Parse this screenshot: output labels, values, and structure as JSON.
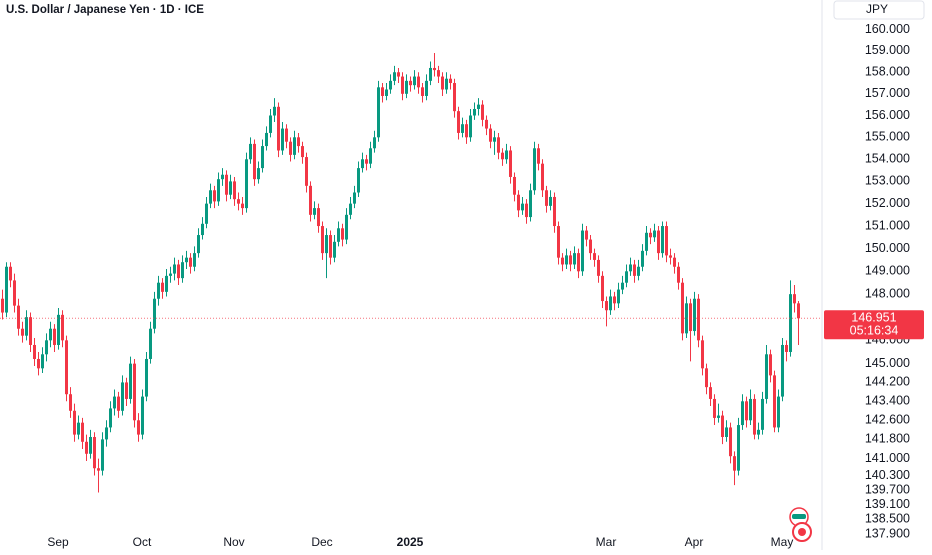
{
  "chart_data": {
    "type": "candlestick",
    "title": "U.S. Dollar / Japanese Yen · 1D · ICE",
    "currency": "JPY",
    "countdown": "05:16:34",
    "up_color": "#089981",
    "down_color": "#f23645",
    "log_scale": true,
    "grid": false,
    "ylim": [
      137.8,
      161.4
    ],
    "yticks": [
      {
        "value": 160,
        "label": "160.000"
      },
      {
        "value": 159,
        "label": "159.000"
      },
      {
        "value": 158,
        "label": "158.000"
      },
      {
        "value": 157,
        "label": "157.000"
      },
      {
        "value": 156,
        "label": "156.000"
      },
      {
        "value": 155,
        "label": "155.000"
      },
      {
        "value": 154,
        "label": "154.000"
      },
      {
        "value": 153,
        "label": "153.000"
      },
      {
        "value": 152,
        "label": "152.000"
      },
      {
        "value": 151,
        "label": "151.000"
      },
      {
        "value": 150,
        "label": "150.000"
      },
      {
        "value": 149,
        "label": "149.000"
      },
      {
        "value": 148,
        "label": "148.000"
      },
      {
        "value": 146,
        "label": "146.000"
      },
      {
        "value": 145,
        "label": "145.000"
      },
      {
        "value": 144.2,
        "label": "144.200"
      },
      {
        "value": 143.4,
        "label": "143.400"
      },
      {
        "value": 142.6,
        "label": "142.600"
      },
      {
        "value": 141.8,
        "label": "141.800"
      },
      {
        "value": 141,
        "label": "141.000"
      },
      {
        "value": 140.3,
        "label": "140.300"
      },
      {
        "value": 139.7,
        "label": "139.700"
      },
      {
        "value": 139.1,
        "label": "139.100"
      },
      {
        "value": 138.5,
        "label": "138.500"
      },
      {
        "value": 137.9,
        "label": "137.900"
      }
    ],
    "categories": [
      null,
      null,
      null,
      null,
      null,
      null,
      null,
      null,
      null,
      null,
      null,
      null,
      null,
      null,
      "Sep",
      null,
      null,
      null,
      null,
      null,
      null,
      null,
      null,
      null,
      null,
      null,
      null,
      null,
      null,
      null,
      null,
      null,
      null,
      null,
      null,
      "Oct",
      null,
      null,
      null,
      null,
      null,
      null,
      null,
      null,
      null,
      null,
      null,
      null,
      null,
      null,
      null,
      null,
      null,
      null,
      null,
      null,
      null,
      null,
      "Nov",
      null,
      null,
      null,
      null,
      null,
      null,
      null,
      null,
      null,
      null,
      null,
      null,
      null,
      null,
      null,
      null,
      null,
      null,
      null,
      null,
      null,
      "Dec",
      null,
      null,
      null,
      null,
      null,
      null,
      null,
      null,
      null,
      null,
      null,
      null,
      null,
      null,
      null,
      null,
      null,
      null,
      null,
      null,
      null,
      "2025",
      null,
      null,
      null,
      null,
      null,
      null,
      null,
      null,
      null,
      null,
      null,
      null,
      null,
      null,
      null,
      null,
      null,
      null,
      null,
      null,
      null,
      null,
      null,
      null,
      null,
      null,
      null,
      null,
      null,
      null,
      null,
      null,
      null,
      null,
      null,
      null,
      null,
      null,
      null,
      null,
      null,
      null,
      null,
      null,
      null,
      null,
      null,
      null,
      "Mar",
      null,
      null,
      null,
      null,
      null,
      null,
      null,
      null,
      null,
      null,
      null,
      null,
      null,
      null,
      null,
      null,
      null,
      null,
      null,
      null,
      null,
      "Apr",
      null,
      null,
      null,
      null,
      null,
      null,
      null,
      null,
      null,
      null,
      null,
      null,
      null,
      null,
      null,
      null,
      null,
      null,
      null,
      null,
      null,
      "May",
      null,
      null,
      null,
      null,
      null,
      null,
      null,
      null
    ],
    "candles": [
      [
        147.8,
        148.2,
        146.9,
        147.2
      ],
      [
        147.2,
        149.4,
        147.0,
        149.2
      ],
      [
        149.2,
        149.4,
        148.3,
        148.6
      ],
      [
        148.6,
        148.9,
        147.2,
        147.5
      ],
      [
        147.5,
        147.8,
        146.2,
        146.5
      ],
      [
        146.5,
        146.8,
        145.9,
        146.2
      ],
      [
        146.2,
        147.3,
        146.0,
        147.0
      ],
      [
        147.0,
        147.2,
        145.5,
        145.8
      ],
      [
        145.8,
        146.1,
        144.9,
        145.2
      ],
      [
        145.2,
        145.5,
        144.5,
        144.8
      ],
      [
        144.8,
        145.7,
        144.6,
        145.4
      ],
      [
        145.4,
        146.3,
        145.1,
        146.0
      ],
      [
        146.0,
        146.8,
        145.7,
        146.5
      ],
      [
        146.5,
        146.7,
        145.5,
        145.8
      ],
      [
        145.8,
        147.4,
        145.6,
        147.1
      ],
      [
        147.1,
        147.3,
        145.7,
        146.0
      ],
      [
        146.0,
        146.2,
        143.4,
        143.7
      ],
      [
        143.7,
        144.0,
        142.7,
        143.0
      ],
      [
        143.0,
        143.3,
        141.7,
        142.0
      ],
      [
        142.0,
        142.8,
        141.8,
        142.5
      ],
      [
        142.5,
        142.7,
        141.4,
        141.7
      ],
      [
        141.7,
        142.0,
        140.9,
        141.2
      ],
      [
        141.2,
        142.2,
        141.0,
        141.9
      ],
      [
        141.9,
        142.1,
        140.3,
        140.6
      ],
      [
        140.6,
        141.0,
        139.6,
        140.5
      ],
      [
        140.5,
        142.1,
        140.3,
        141.8
      ],
      [
        141.8,
        142.6,
        141.5,
        142.3
      ],
      [
        142.3,
        143.4,
        142.1,
        143.1
      ],
      [
        143.1,
        143.9,
        142.8,
        143.6
      ],
      [
        143.6,
        143.8,
        142.7,
        143.0
      ],
      [
        143.0,
        144.5,
        142.8,
        144.2
      ],
      [
        144.2,
        144.4,
        143.2,
        143.5
      ],
      [
        143.5,
        145.3,
        143.3,
        145.0
      ],
      [
        145.0,
        145.2,
        142.3,
        142.6
      ],
      [
        142.6,
        142.9,
        141.7,
        142.0
      ],
      [
        142.0,
        143.9,
        141.8,
        143.6
      ],
      [
        143.6,
        145.5,
        143.4,
        145.2
      ],
      [
        145.2,
        146.8,
        145.0,
        146.5
      ],
      [
        146.5,
        148.1,
        146.3,
        147.8
      ],
      [
        147.8,
        148.8,
        147.5,
        148.5
      ],
      [
        148.5,
        148.7,
        147.8,
        148.1
      ],
      [
        148.1,
        149.1,
        147.9,
        148.8
      ],
      [
        148.8,
        149.2,
        148.5,
        148.9
      ],
      [
        148.9,
        149.6,
        148.6,
        149.3
      ],
      [
        149.3,
        149.5,
        148.4,
        148.7
      ],
      [
        148.7,
        149.7,
        148.5,
        149.4
      ],
      [
        149.4,
        149.9,
        149.1,
        149.6
      ],
      [
        149.6,
        149.8,
        148.9,
        149.2
      ],
      [
        149.2,
        150.1,
        149.0,
        149.8
      ],
      [
        149.8,
        150.9,
        149.6,
        150.6
      ],
      [
        150.6,
        151.4,
        150.4,
        151.1
      ],
      [
        151.1,
        152.3,
        150.9,
        152.0
      ],
      [
        152.0,
        152.9,
        151.8,
        152.6
      ],
      [
        152.6,
        152.8,
        151.8,
        152.1
      ],
      [
        152.1,
        153.4,
        151.9,
        153.1
      ],
      [
        153.1,
        153.6,
        152.8,
        153.3
      ],
      [
        153.3,
        153.5,
        152.1,
        152.4
      ],
      [
        152.4,
        153.3,
        152.2,
        153.0
      ],
      [
        153.0,
        153.2,
        151.9,
        152.2
      ],
      [
        152.2,
        152.5,
        151.7,
        152.0
      ],
      [
        152.0,
        152.3,
        151.5,
        151.8
      ],
      [
        151.8,
        154.3,
        151.6,
        154.0
      ],
      [
        154.0,
        155.0,
        153.8,
        154.7
      ],
      [
        154.7,
        154.9,
        152.8,
        153.1
      ],
      [
        153.1,
        153.9,
        152.9,
        153.6
      ],
      [
        153.6,
        154.9,
        153.4,
        154.6
      ],
      [
        154.6,
        155.5,
        154.4,
        155.2
      ],
      [
        155.2,
        156.3,
        155.0,
        156.0
      ],
      [
        156.0,
        156.8,
        155.7,
        156.4
      ],
      [
        156.4,
        156.6,
        154.1,
        154.4
      ],
      [
        154.4,
        155.7,
        154.2,
        155.4
      ],
      [
        155.4,
        155.6,
        154.5,
        154.8
      ],
      [
        154.8,
        155.0,
        153.9,
        154.2
      ],
      [
        154.2,
        155.3,
        154.0,
        155.0
      ],
      [
        155.0,
        155.2,
        154.3,
        154.6
      ],
      [
        154.6,
        154.8,
        153.8,
        154.1
      ],
      [
        154.1,
        154.3,
        152.5,
        152.8
      ],
      [
        152.8,
        153.0,
        151.2,
        151.5
      ],
      [
        151.5,
        152.1,
        151.3,
        151.8
      ],
      [
        151.8,
        152.0,
        150.7,
        151.0
      ],
      [
        151.0,
        151.2,
        149.5,
        149.8
      ],
      [
        149.8,
        150.9,
        148.7,
        150.6
      ],
      [
        150.6,
        150.8,
        149.3,
        149.6
      ],
      [
        149.6,
        150.6,
        149.4,
        150.3
      ],
      [
        150.3,
        151.2,
        150.1,
        150.9
      ],
      [
        150.9,
        151.1,
        150.1,
        150.4
      ],
      [
        150.4,
        151.8,
        150.2,
        151.5
      ],
      [
        151.5,
        152.3,
        151.3,
        152.0
      ],
      [
        152.0,
        152.8,
        151.8,
        152.5
      ],
      [
        152.5,
        153.9,
        152.3,
        153.6
      ],
      [
        153.6,
        154.3,
        153.4,
        154.0
      ],
      [
        154.0,
        154.2,
        153.5,
        153.8
      ],
      [
        153.8,
        154.8,
        153.6,
        154.5
      ],
      [
        154.5,
        155.3,
        154.3,
        155.0
      ],
      [
        155.0,
        157.6,
        154.8,
        157.3
      ],
      [
        157.3,
        157.5,
        156.6,
        156.9
      ],
      [
        156.9,
        157.5,
        156.7,
        157.2
      ],
      [
        157.2,
        157.9,
        157.0,
        157.6
      ],
      [
        157.6,
        158.3,
        157.4,
        158.0
      ],
      [
        158.0,
        158.2,
        157.5,
        157.8
      ],
      [
        157.8,
        158.0,
        156.7,
        157.0
      ],
      [
        157.0,
        157.9,
        156.8,
        157.6
      ],
      [
        157.6,
        157.8,
        157.1,
        157.4
      ],
      [
        157.4,
        158.1,
        157.2,
        157.8
      ],
      [
        157.8,
        158.0,
        157.0,
        157.3
      ],
      [
        157.3,
        157.5,
        156.6,
        156.9
      ],
      [
        156.9,
        157.9,
        156.7,
        157.6
      ],
      [
        157.6,
        158.5,
        157.4,
        158.2
      ],
      [
        158.2,
        158.9,
        157.8,
        158.1
      ],
      [
        158.1,
        158.3,
        157.5,
        157.8
      ],
      [
        157.8,
        158.0,
        156.9,
        157.2
      ],
      [
        157.2,
        158.0,
        157.0,
        157.7
      ],
      [
        157.7,
        157.9,
        157.2,
        157.5
      ],
      [
        157.5,
        157.7,
        155.9,
        156.2
      ],
      [
        156.2,
        156.4,
        154.9,
        155.2
      ],
      [
        155.2,
        155.9,
        155.0,
        155.6
      ],
      [
        155.6,
        155.8,
        154.7,
        155.0
      ],
      [
        155.0,
        156.3,
        154.8,
        156.0
      ],
      [
        156.0,
        156.6,
        155.8,
        156.3
      ],
      [
        156.3,
        156.8,
        156.0,
        156.5
      ],
      [
        156.5,
        156.7,
        155.5,
        155.8
      ],
      [
        155.8,
        156.0,
        155.1,
        155.4
      ],
      [
        155.4,
        155.6,
        154.5,
        154.8
      ],
      [
        154.8,
        155.3,
        154.2,
        155.0
      ],
      [
        155.0,
        155.2,
        154.0,
        154.3
      ],
      [
        154.3,
        154.5,
        153.7,
        154.0
      ],
      [
        154.0,
        154.7,
        153.8,
        154.4
      ],
      [
        154.4,
        154.6,
        152.9,
        153.2
      ],
      [
        153.2,
        153.4,
        152.1,
        152.4
      ],
      [
        152.4,
        152.6,
        151.4,
        151.7
      ],
      [
        151.7,
        152.3,
        151.5,
        152.0
      ],
      [
        152.0,
        152.2,
        151.1,
        151.4
      ],
      [
        151.4,
        152.9,
        151.2,
        152.6
      ],
      [
        152.6,
        154.8,
        152.4,
        154.5
      ],
      [
        154.5,
        154.7,
        153.5,
        153.8
      ],
      [
        153.8,
        154.0,
        152.3,
        152.6
      ],
      [
        152.6,
        152.8,
        151.6,
        151.9
      ],
      [
        151.9,
        152.6,
        151.7,
        152.3
      ],
      [
        152.3,
        152.5,
        150.7,
        151.0
      ],
      [
        151.0,
        151.2,
        149.3,
        149.6
      ],
      [
        149.6,
        149.8,
        149.0,
        149.3
      ],
      [
        149.3,
        150.0,
        149.1,
        149.7
      ],
      [
        149.7,
        149.9,
        149.0,
        149.3
      ],
      [
        149.3,
        150.1,
        149.1,
        149.8
      ],
      [
        149.8,
        150.0,
        148.7,
        149.0
      ],
      [
        149.0,
        151.1,
        148.8,
        150.8
      ],
      [
        150.8,
        151.0,
        150.1,
        150.4
      ],
      [
        150.4,
        150.6,
        149.5,
        149.8
      ],
      [
        149.8,
        150.0,
        149.2,
        149.5
      ],
      [
        149.5,
        149.7,
        148.5,
        148.8
      ],
      [
        148.8,
        149.0,
        147.4,
        147.7
      ],
      [
        147.7,
        147.9,
        146.6,
        147.3
      ],
      [
        147.3,
        148.2,
        147.1,
        147.9
      ],
      [
        147.9,
        148.1,
        147.3,
        147.6
      ],
      [
        147.6,
        148.5,
        147.4,
        148.2
      ],
      [
        148.2,
        148.8,
        148.0,
        148.5
      ],
      [
        148.5,
        149.3,
        148.3,
        149.0
      ],
      [
        149.0,
        149.6,
        148.8,
        149.3
      ],
      [
        149.3,
        149.5,
        148.5,
        148.8
      ],
      [
        148.8,
        149.5,
        148.6,
        149.2
      ],
      [
        149.2,
        150.2,
        149.0,
        149.9
      ],
      [
        149.9,
        151.0,
        149.7,
        150.7
      ],
      [
        150.7,
        150.9,
        150.2,
        150.5
      ],
      [
        150.5,
        151.1,
        150.3,
        150.8
      ],
      [
        150.8,
        151.0,
        149.5,
        149.8
      ],
      [
        149.8,
        151.2,
        149.6,
        151.0
      ],
      [
        151.0,
        151.2,
        149.4,
        149.7
      ],
      [
        149.7,
        150.0,
        149.3,
        149.6
      ],
      [
        149.6,
        149.8,
        148.9,
        149.2
      ],
      [
        149.2,
        149.4,
        148.2,
        148.5
      ],
      [
        148.5,
        148.7,
        146.0,
        146.3
      ],
      [
        146.3,
        147.9,
        146.1,
        147.6
      ],
      [
        147.6,
        147.8,
        145.1,
        146.4
      ],
      [
        146.4,
        148.1,
        146.2,
        147.8
      ],
      [
        147.8,
        148.0,
        145.7,
        146.0
      ],
      [
        146.0,
        146.2,
        144.5,
        144.8
      ],
      [
        144.8,
        145.0,
        143.7,
        144.0
      ],
      [
        144.0,
        144.2,
        143.2,
        143.5
      ],
      [
        143.5,
        143.7,
        142.4,
        142.7
      ],
      [
        142.7,
        143.3,
        142.5,
        142.8
      ],
      [
        142.8,
        143.0,
        141.6,
        141.9
      ],
      [
        141.9,
        142.6,
        141.7,
        142.3
      ],
      [
        142.3,
        142.5,
        140.8,
        141.1
      ],
      [
        141.1,
        141.3,
        139.9,
        140.5
      ],
      [
        140.5,
        142.7,
        140.3,
        142.4
      ],
      [
        142.4,
        143.7,
        142.2,
        143.4
      ],
      [
        143.4,
        143.6,
        142.3,
        142.6
      ],
      [
        142.6,
        143.9,
        142.4,
        143.5
      ],
      [
        143.5,
        143.7,
        141.8,
        142.0
      ],
      [
        142.0,
        142.5,
        141.8,
        142.2
      ],
      [
        142.2,
        143.8,
        142.0,
        143.5
      ],
      [
        143.5,
        145.8,
        143.3,
        145.4
      ],
      [
        145.4,
        145.6,
        144.2,
        144.5
      ],
      [
        144.5,
        144.7,
        142.1,
        142.3
      ],
      [
        142.3,
        143.9,
        142.1,
        143.6
      ],
      [
        143.6,
        146.1,
        143.4,
        145.8
      ],
      [
        145.8,
        146.0,
        145.1,
        145.5
      ],
      [
        145.5,
        148.6,
        145.3,
        148.0
      ],
      [
        148.0,
        148.4,
        147.2,
        147.6
      ],
      [
        147.6,
        147.7,
        145.8,
        146.951
      ]
    ]
  }
}
